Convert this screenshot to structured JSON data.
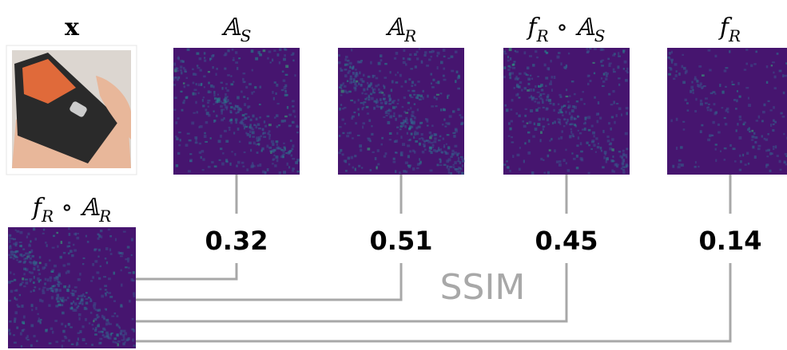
{
  "input_label": "x",
  "panels": [
    {
      "label": [
        {
          "text": "𝔸",
          "sub": "S"
        }
      ],
      "ssim": "0.32"
    },
    {
      "label": [
        {
          "text": "𝔸",
          "sub": "R"
        }
      ],
      "ssim": "0.51"
    },
    {
      "label": [
        {
          "text": "f",
          "sub": "R"
        },
        {
          "text": " ∘ 𝔸",
          "sub": "S"
        }
      ],
      "ssim": "0.45"
    },
    {
      "label": [
        {
          "text": "f",
          "sub": "R"
        }
      ],
      "ssim": "0.14"
    }
  ],
  "reference": {
    "label": [
      {
        "text": "f",
        "sub": "R"
      },
      {
        "text": " ∘ 𝔸",
        "sub": "R"
      }
    ]
  },
  "metric": "SSIM"
}
